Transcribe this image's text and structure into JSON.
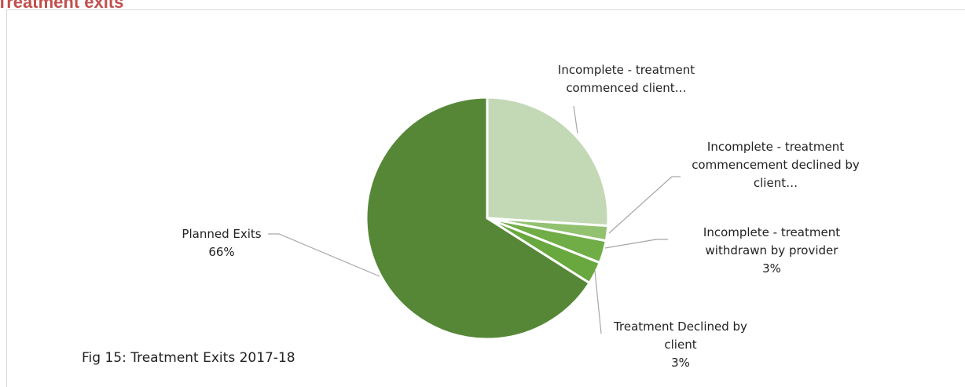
{
  "heading": "Treatment exits",
  "chart_data": {
    "type": "pie",
    "caption": "Fig 15: Treatment Exits  2017-18",
    "categories": [
      "Incomplete - treatment commenced client…",
      "Incomplete - treatment commencement declined by client…",
      "Incomplete - treatment withdrawn by provider",
      "Treatment Declined by client",
      "Planned Exits"
    ],
    "values": [
      26,
      2,
      3,
      3,
      66
    ],
    "value_labels": [
      null,
      null,
      "3%",
      "3%",
      "66%"
    ],
    "colors": [
      "#c3d9b6",
      "#92c26f",
      "#70ad47",
      "#68a83f",
      "#568737"
    ]
  }
}
